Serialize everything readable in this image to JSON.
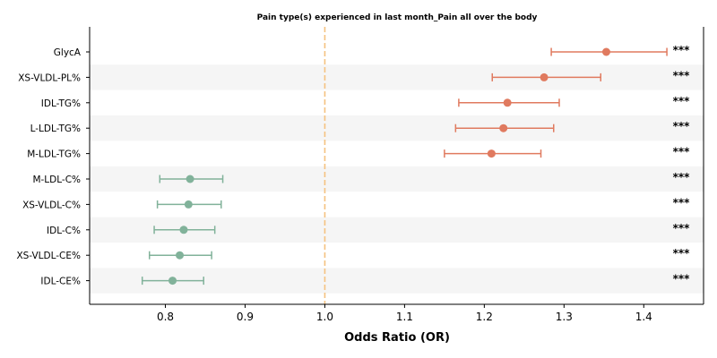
{
  "chart_data": {
    "type": "forest",
    "title": "Pain type(s) experienced in last month_Pain all over the body",
    "xlabel": "Odds Ratio (OR)",
    "ylabel": "",
    "xlim": [
      0.705,
      1.475
    ],
    "xticks": [
      "0.8",
      "0.9",
      "1.0",
      "1.1",
      "1.2",
      "1.3",
      "1.4"
    ],
    "reference_line": 1.0,
    "reference_line_color": "#f5c27f",
    "positive_color": "#e07a5f",
    "negative_color": "#81b29a",
    "band_color": "#f5f5f5",
    "grid": false,
    "rows": [
      {
        "label": "GlycA",
        "or": 1.353,
        "lower": 1.284,
        "upper": 1.429,
        "sig": "***"
      },
      {
        "label": "XS-VLDL-PL%",
        "or": 1.275,
        "lower": 1.21,
        "upper": 1.346,
        "sig": "***"
      },
      {
        "label": "IDL-TG%",
        "or": 1.229,
        "lower": 1.168,
        "upper": 1.294,
        "sig": "***"
      },
      {
        "label": "L-LDL-TG%",
        "or": 1.224,
        "lower": 1.164,
        "upper": 1.287,
        "sig": "***"
      },
      {
        "label": "M-LDL-TG%",
        "or": 1.209,
        "lower": 1.15,
        "upper": 1.271,
        "sig": "***"
      },
      {
        "label": "M-LDL-C%",
        "or": 0.831,
        "lower": 0.793,
        "upper": 0.872,
        "sig": "***"
      },
      {
        "label": "XS-VLDL-C%",
        "or": 0.829,
        "lower": 0.79,
        "upper": 0.87,
        "sig": "***"
      },
      {
        "label": "IDL-C%",
        "or": 0.823,
        "lower": 0.786,
        "upper": 0.862,
        "sig": "***"
      },
      {
        "label": "XS-VLDL-CE%",
        "or": 0.818,
        "lower": 0.78,
        "upper": 0.858,
        "sig": "***"
      },
      {
        "label": "IDL-CE%",
        "or": 0.809,
        "lower": 0.771,
        "upper": 0.848,
        "sig": "***"
      }
    ]
  }
}
